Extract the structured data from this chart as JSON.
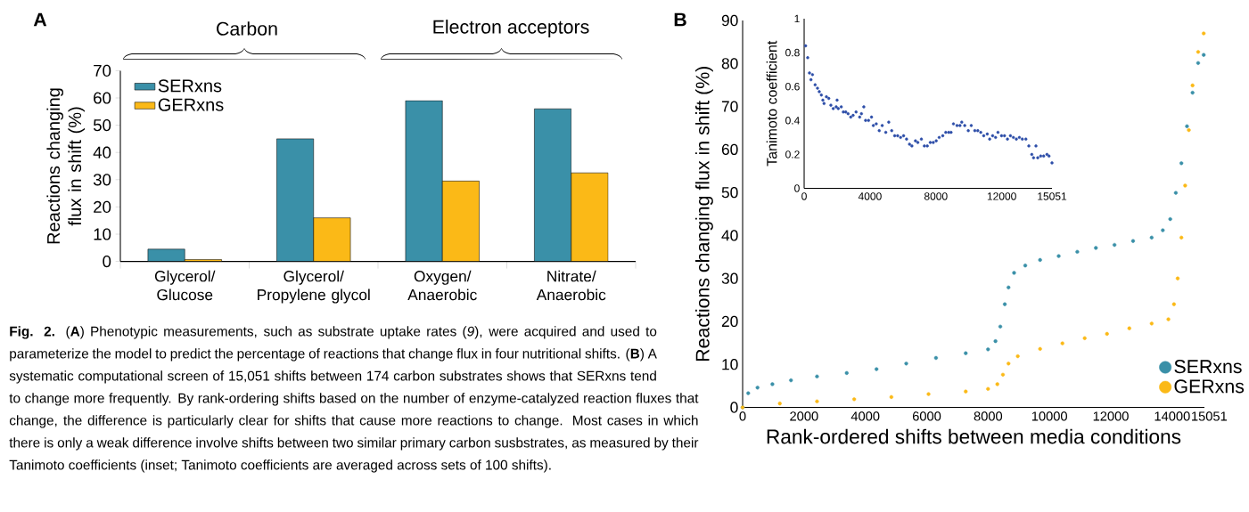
{
  "chart_data": [
    {
      "type": "bar",
      "categories": [
        "Glycerol/ Glucose",
        "Glycerol/ Propylene glycol",
        "Oxygen/ Anaerobic",
        "Nitrate/ Anaerobic"
      ],
      "series": [
        {
          "name": "SERxns",
          "color": "#3a90a8",
          "values": [
            4.5,
            45,
            59,
            56
          ]
        },
        {
          "name": "GERxns",
          "color": "#fbb917",
          "values": [
            0.7,
            16,
            29.5,
            32.5
          ]
        }
      ],
      "ylim": [
        0,
        70
      ],
      "yticks": [
        0,
        10,
        20,
        30,
        40,
        50,
        60,
        70
      ],
      "ylabel": "Reactions changing flux in shift (%)",
      "legend": "top left",
      "annotations": [
        "A",
        "Carbon",
        "Electron acceptors",
        "**Fig. 2.** (**A**) Phenotypic measurements, such as substrate uptake rates (*9*), were acquired and used to parameterize the model to predict the percentage of reactions that change flux in four nutritional shifts. (**B**) A systematic computational screen of 15,051 shifts between 174 carbon substrates shows that SERxns tend to change more frequently. By rank-ordering shifts based on the number of enzyme-catalyzed reaction fluxes that change, the difference is particularly clear for shifts that cause more reactions to change. Most cases in which there is only a weak difference involve shifts between two similar primary carbon susbstrates, as measured by their Tanimoto coefficients (inset; Tanimoto coefficients are averaged across sets of 100 shifts)."
      ]
    },
    {
      "type": "scatter",
      "series": [
        {
          "name": "SERxns",
          "color": "#3a90a8",
          "x": [
            0,
            182,
            485,
            970,
            1575,
            2424,
            3393,
            4363,
            5332,
            6302,
            7271,
            7998,
            8241,
            8398,
            8544,
            8665,
            8847,
            9211,
            9695,
            10301,
            10907,
            11513,
            12119,
            12725,
            13331,
            13694,
            13937,
            14118,
            14300,
            14482,
            14664,
            14846,
            15027
          ],
          "values": [
            0,
            3.3,
            4.6,
            5.4,
            6.3,
            7.2,
            8.0,
            8.9,
            10.2,
            11.5,
            12.6,
            13.5,
            15.4,
            18.8,
            24.0,
            27.9,
            31.3,
            33.0,
            34.3,
            35.2,
            36.2,
            37.1,
            37.8,
            38.7,
            39.5,
            41.2,
            43.8,
            49.9,
            56.8,
            65.4,
            73.2,
            80.1,
            82.0
          ]
        },
        {
          "name": "GERxns",
          "color": "#fbb917",
          "x": [
            0,
            1212,
            2424,
            3636,
            4848,
            6059,
            7271,
            7998,
            8301,
            8483,
            8665,
            8968,
            9695,
            10422,
            11149,
            11876,
            12603,
            13331,
            13876,
            14058,
            14179,
            14300,
            14422,
            14543,
            14664,
            14846,
            15027
          ],
          "values": [
            0,
            0.9,
            1.4,
            1.9,
            2.4,
            3.1,
            3.7,
            4.3,
            5.4,
            7.6,
            10.2,
            11.9,
            13.6,
            14.9,
            16.1,
            17.1,
            18.4,
            19.5,
            20.5,
            24.0,
            30.0,
            39.5,
            51.6,
            64.5,
            74.9,
            82.7,
            87.0
          ]
        }
      ],
      "xlim": [
        0,
        15051
      ],
      "ylim": [
        0,
        90
      ],
      "xticks": [
        0,
        2000,
        4000,
        6000,
        8000,
        10000,
        12000,
        14000,
        15051
      ],
      "yticks": [
        0,
        10,
        20,
        30,
        40,
        50,
        60,
        70,
        80,
        90
      ],
      "xlabel": "Rank-ordered shifts between media conditions",
      "ylabel": "Reactions changing flux in shift (%)",
      "legend": "bottom right",
      "annotations": [
        "B"
      ]
    },
    {
      "type": "scatter",
      "color": "#2d4ea8",
      "x": [
        90,
        216,
        324,
        415,
        505,
        667,
        811,
        919,
        1045,
        1136,
        1208,
        1352,
        1496,
        1622,
        1766,
        1947,
        2001,
        2073,
        2253,
        2379,
        2524,
        2668,
        2830,
        2974,
        3154,
        3371,
        3479,
        3623,
        3731,
        3911,
        4092,
        4200,
        4380,
        4560,
        4740,
        4957,
        5137,
        5318,
        5498,
        5678,
        5858,
        6039,
        6219,
        6399,
        6543,
        6760,
        6903,
        7120,
        7300,
        7480,
        7660,
        7840,
        8021,
        8201,
        8418,
        8598,
        8778,
        8922,
        9067,
        9283,
        9463,
        9571,
        9752,
        9968,
        10148,
        10365,
        10545,
        10725,
        10905,
        11121,
        11265,
        11446,
        11626,
        11770,
        11986,
        12167,
        12347,
        12527,
        12707,
        12887,
        13068,
        13248,
        13464,
        13644,
        13824,
        13932,
        14077,
        14185,
        14365,
        14545,
        14743,
        14870,
        15051
      ],
      "values": [
        0.84,
        0.77,
        0.68,
        0.64,
        0.67,
        0.61,
        0.59,
        0.57,
        0.55,
        0.52,
        0.5,
        0.54,
        0.53,
        0.49,
        0.47,
        0.48,
        0.52,
        0.47,
        0.48,
        0.45,
        0.45,
        0.44,
        0.42,
        0.43,
        0.45,
        0.42,
        0.44,
        0.48,
        0.4,
        0.4,
        0.42,
        0.37,
        0.38,
        0.34,
        0.37,
        0.33,
        0.39,
        0.34,
        0.31,
        0.31,
        0.3,
        0.31,
        0.29,
        0.26,
        0.25,
        0.28,
        0.27,
        0.29,
        0.25,
        0.25,
        0.27,
        0.27,
        0.28,
        0.3,
        0.31,
        0.33,
        0.33,
        0.33,
        0.38,
        0.37,
        0.37,
        0.39,
        0.37,
        0.34,
        0.37,
        0.34,
        0.34,
        0.33,
        0.31,
        0.32,
        0.29,
        0.31,
        0.3,
        0.33,
        0.31,
        0.31,
        0.29,
        0.31,
        0.3,
        0.29,
        0.3,
        0.29,
        0.29,
        0.25,
        0.2,
        0.18,
        0.25,
        0.18,
        0.19,
        0.19,
        0.2,
        0.19,
        0.15
      ],
      "xlim": [
        0,
        15051
      ],
      "ylim": [
        0,
        1
      ],
      "xticks": [
        0,
        4000,
        8000,
        12000,
        15051
      ],
      "yticks": [
        0,
        0.2,
        0.4,
        0.6,
        0.8,
        1
      ],
      "ylabel": "Tanimoto coefficient"
    }
  ]
}
